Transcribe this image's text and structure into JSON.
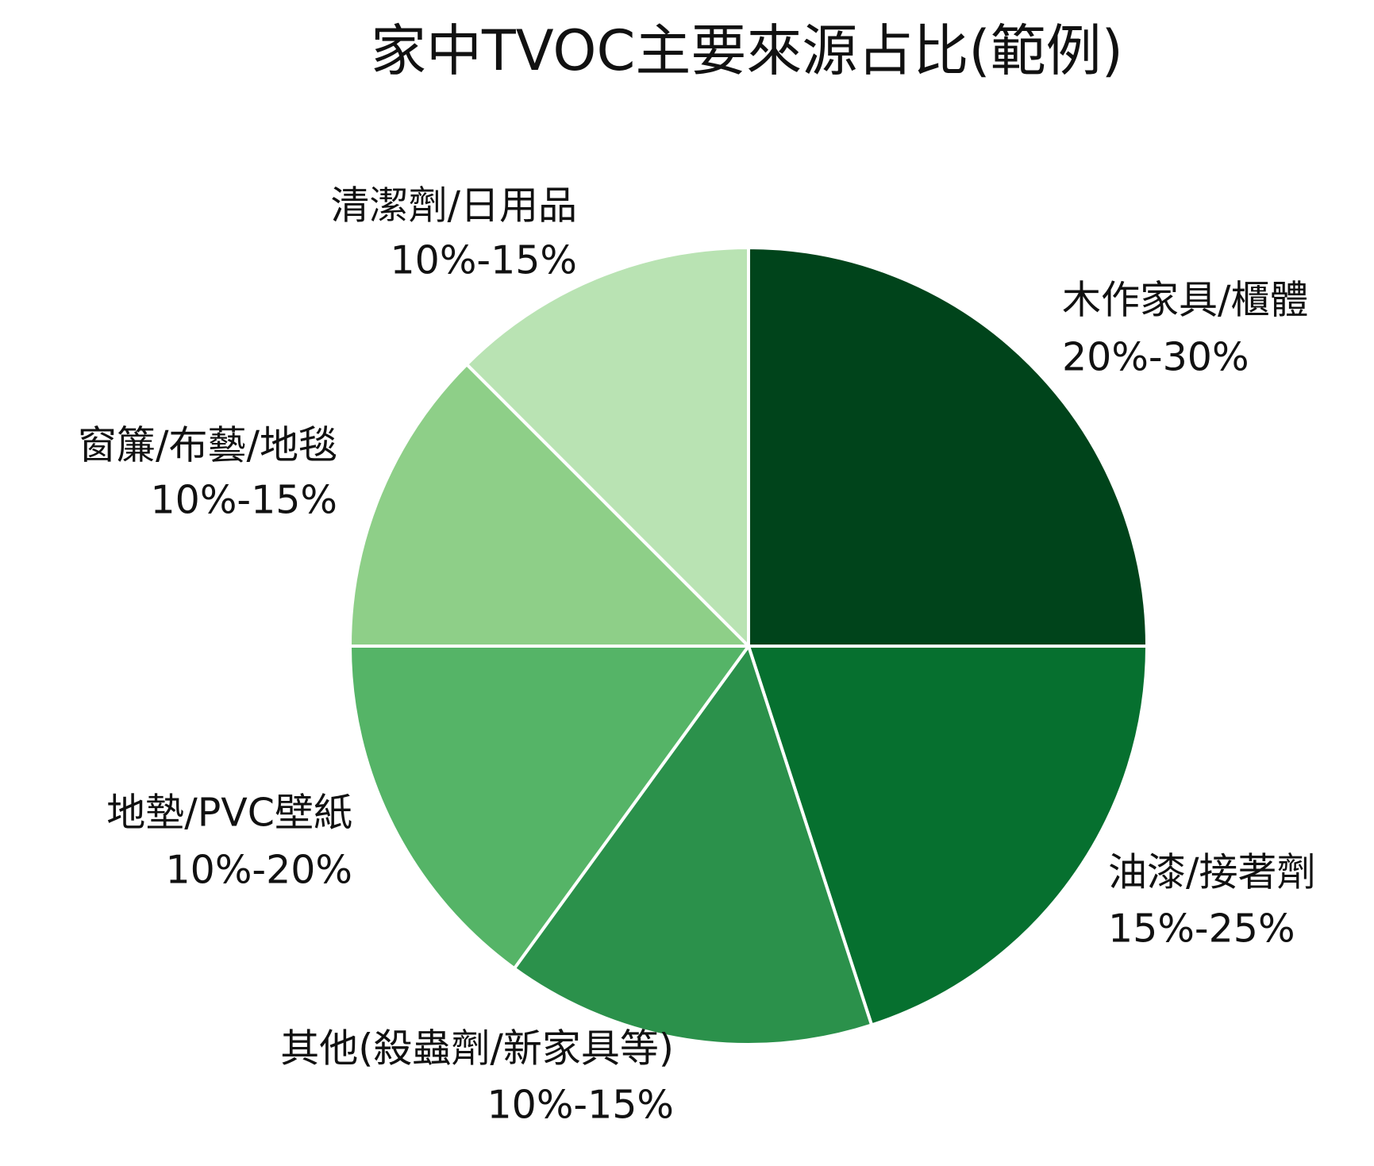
{
  "chart_data": {
    "type": "pie",
    "title": "家中TVOC主要來源占比(範例)",
    "categories": [
      "木作家具/櫃體",
      "油漆/接著劑",
      "其他(殺蟲劑/新家具等)",
      "地墊/PVC壁紙",
      "窗簾/布藝/地毯",
      "清潔劑/日用品"
    ],
    "values": [
      25,
      20,
      15,
      15,
      12.5,
      12.5
    ],
    "value_labels": [
      "20%-30%",
      "15%-25%",
      "10%-15%",
      "10%-20%",
      "10%-15%",
      "10%-15%"
    ],
    "colors": [
      "#00441b",
      "#06702f",
      "#2b914b",
      "#55b467",
      "#8ecf88",
      "#b9e3b3"
    ]
  }
}
